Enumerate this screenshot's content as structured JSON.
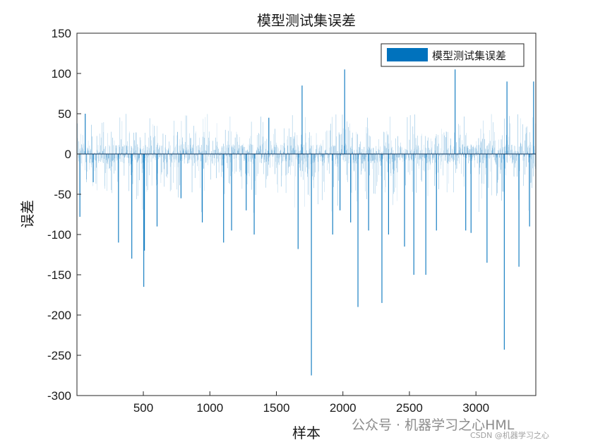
{
  "chart_data": {
    "type": "bar",
    "title": "模型测试集误差",
    "xlabel": "样本",
    "ylabel": "误差",
    "xlim": [
      1,
      3450
    ],
    "ylim": [
      -300,
      150
    ],
    "xticks": [
      500,
      1000,
      1500,
      2000,
      2500,
      3000
    ],
    "yticks": [
      150,
      100,
      50,
      0,
      -50,
      -100,
      -150,
      -200,
      -250,
      -300
    ],
    "grid": false,
    "legend": {
      "placement": "top-right",
      "entries": [
        "模型测试集误差"
      ]
    },
    "series": [
      {
        "name": "模型测试集误差",
        "color": "#0072BD",
        "sample_count": 3450,
        "notable_values": [
          {
            "x": 20,
            "y": -78
          },
          {
            "x": 60,
            "y": 50
          },
          {
            "x": 120,
            "y": -35
          },
          {
            "x": 310,
            "y": -110
          },
          {
            "x": 410,
            "y": -130
          },
          {
            "x": 500,
            "y": -165
          },
          {
            "x": 505,
            "y": -120
          },
          {
            "x": 600,
            "y": -90
          },
          {
            "x": 780,
            "y": -55
          },
          {
            "x": 940,
            "y": -85
          },
          {
            "x": 1100,
            "y": -110
          },
          {
            "x": 1160,
            "y": -95
          },
          {
            "x": 1270,
            "y": -70
          },
          {
            "x": 1330,
            "y": -100
          },
          {
            "x": 1440,
            "y": 45
          },
          {
            "x": 1660,
            "y": -118
          },
          {
            "x": 1690,
            "y": 85
          },
          {
            "x": 1760,
            "y": -275
          },
          {
            "x": 1920,
            "y": -100
          },
          {
            "x": 1975,
            "y": -70
          },
          {
            "x": 2010,
            "y": 105
          },
          {
            "x": 2055,
            "y": -85
          },
          {
            "x": 2110,
            "y": -190
          },
          {
            "x": 2190,
            "y": -95
          },
          {
            "x": 2290,
            "y": -185
          },
          {
            "x": 2340,
            "y": -100
          },
          {
            "x": 2460,
            "y": -115
          },
          {
            "x": 2530,
            "y": -150
          },
          {
            "x": 2620,
            "y": -150
          },
          {
            "x": 2700,
            "y": -95
          },
          {
            "x": 2840,
            "y": 105
          },
          {
            "x": 2920,
            "y": -95
          },
          {
            "x": 2960,
            "y": -98
          },
          {
            "x": 3080,
            "y": -135
          },
          {
            "x": 3210,
            "y": -243
          },
          {
            "x": 3230,
            "y": 90
          },
          {
            "x": 3320,
            "y": -140
          },
          {
            "x": 3400,
            "y": -90
          },
          {
            "x": 3430,
            "y": 90
          }
        ]
      }
    ]
  },
  "watermark": {
    "main": "公众号 · 机器学习之心HML",
    "sub": "CSDN @机器学习之心"
  }
}
